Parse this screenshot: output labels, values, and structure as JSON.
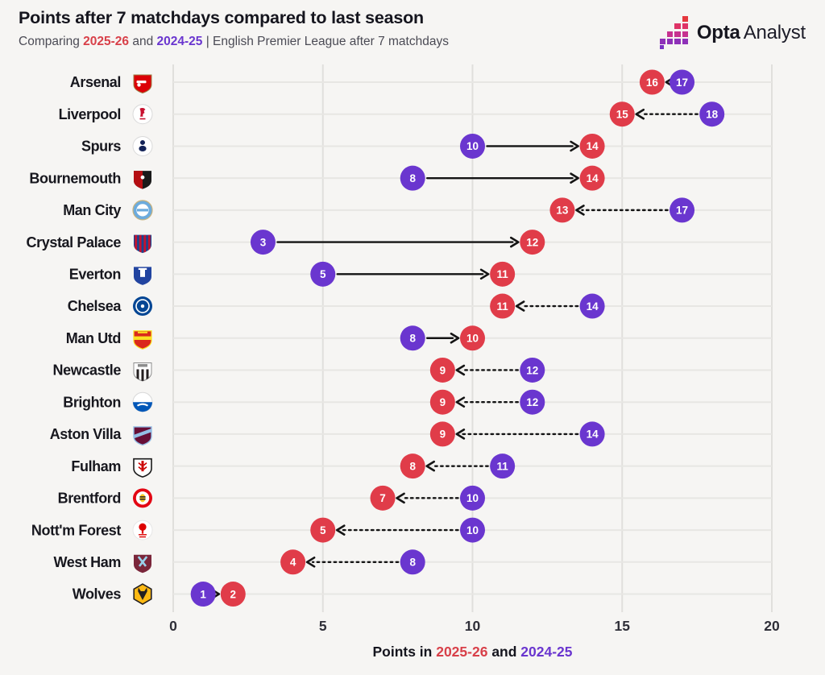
{
  "header": {
    "title": "Points after 7 matchdays compared to last season",
    "subtitle": {
      "prefix": "Comparing ",
      "season_new": "2025-26",
      "and": " and ",
      "season_old": "2024-25",
      "suffix": " | English Premier League after 7 matchdays"
    }
  },
  "logo": {
    "brand_bold": "Opta",
    "brand_light": "Analyst",
    "square_row_colors": [
      "#e5383d",
      "#de3366",
      "#c63190",
      "#8e31b8"
    ],
    "detached_square_color": "#7a32c4"
  },
  "x_axis_label": {
    "prefix": "Points in ",
    "season_new": "2025-26",
    "and": " and ",
    "season_old": "2024-25"
  },
  "colors": {
    "season_new_dot": "#e03c49",
    "season_old_dot": "#6a36cf",
    "arrow": "#141414",
    "background": "#f6f5f3",
    "gridline_h": "#e7e6e3",
    "gridline_v": "#e0dfdc",
    "team_label": "#17171e",
    "tick_label": "#2f2f38"
  },
  "chart_data": {
    "type": "dumbbell",
    "title": "Points after 7 matchdays compared to last season",
    "xlabel": "Points in 2025-26 and 2024-25",
    "xlim": [
      0,
      20
    ],
    "xticks": [
      0,
      5,
      10,
      15,
      20
    ],
    "grid": true,
    "series": [
      {
        "name": "2025-26",
        "color": "#e03c49",
        "role": "new"
      },
      {
        "name": "2024-25",
        "color": "#6a36cf",
        "role": "old"
      }
    ],
    "arrow_note": "arrow points from 2024-25 value to 2025-26 value; solid = improved, dashed = declined",
    "teams": [
      {
        "name": "Arsenal",
        "pts_2025_26": 16,
        "pts_2024_25": 17,
        "badge": {
          "motif": "arsenal",
          "colors": [
            "#db0007",
            "#ffffff",
            "#9c824a"
          ]
        }
      },
      {
        "name": "Liverpool",
        "pts_2025_26": 15,
        "pts_2024_25": 18,
        "badge": {
          "motif": "liverpool",
          "colors": [
            "#ffffff",
            "#c8102e",
            "#d9d9d9"
          ]
        }
      },
      {
        "name": "Spurs",
        "pts_2025_26": 14,
        "pts_2024_25": 10,
        "badge": {
          "motif": "spurs",
          "colors": [
            "#ffffff",
            "#132257",
            "#d9d9d9"
          ]
        }
      },
      {
        "name": "Bournemouth",
        "pts_2025_26": 14,
        "pts_2024_25": 8,
        "badge": {
          "motif": "bournemouth",
          "colors": [
            "#b50e12",
            "#1a1a1a",
            "#ffffff"
          ]
        }
      },
      {
        "name": "Man City",
        "pts_2025_26": 13,
        "pts_2024_25": 17,
        "badge": {
          "motif": "mancity",
          "colors": [
            "#6cabdd",
            "#ffffff",
            "#c9b37e"
          ]
        }
      },
      {
        "name": "Crystal Palace",
        "pts_2025_26": 12,
        "pts_2024_25": 3,
        "badge": {
          "motif": "palace",
          "colors": [
            "#1b458f",
            "#c4122e"
          ]
        }
      },
      {
        "name": "Everton",
        "pts_2025_26": 11,
        "pts_2024_25": 5,
        "badge": {
          "motif": "everton",
          "colors": [
            "#2244a0",
            "#ffffff"
          ]
        }
      },
      {
        "name": "Chelsea",
        "pts_2025_26": 11,
        "pts_2024_25": 14,
        "badge": {
          "motif": "chelsea",
          "colors": [
            "#034694",
            "#ffffff"
          ]
        }
      },
      {
        "name": "Man Utd",
        "pts_2025_26": 10,
        "pts_2024_25": 8,
        "badge": {
          "motif": "manutd",
          "colors": [
            "#da291c",
            "#fbe122"
          ]
        }
      },
      {
        "name": "Newcastle",
        "pts_2025_26": 9,
        "pts_2024_25": 12,
        "badge": {
          "motif": "newcastle",
          "colors": [
            "#241f20",
            "#ffffff",
            "#8d8d8d"
          ]
        }
      },
      {
        "name": "Brighton",
        "pts_2025_26": 9,
        "pts_2024_25": 12,
        "badge": {
          "motif": "brighton",
          "colors": [
            "#ffffff",
            "#0057b8",
            "#d9d9d9"
          ]
        }
      },
      {
        "name": "Aston Villa",
        "pts_2025_26": 9,
        "pts_2024_25": 14,
        "badge": {
          "motif": "villa",
          "colors": [
            "#670e36",
            "#94bee5"
          ]
        }
      },
      {
        "name": "Fulham",
        "pts_2025_26": 8,
        "pts_2024_25": 11,
        "badge": {
          "motif": "fulham",
          "colors": [
            "#ffffff",
            "#1a1a1a",
            "#cc0000"
          ]
        }
      },
      {
        "name": "Brentford",
        "pts_2025_26": 7,
        "pts_2024_25": 10,
        "badge": {
          "motif": "brentford",
          "colors": [
            "#e30613",
            "#ffffff",
            "#f9c623",
            "#231f20"
          ]
        }
      },
      {
        "name": "Nott'm Forest",
        "pts_2025_26": 5,
        "pts_2024_25": 10,
        "badge": {
          "motif": "forest",
          "colors": [
            "#ffffff",
            "#dd0000"
          ]
        }
      },
      {
        "name": "West Ham",
        "pts_2025_26": 4,
        "pts_2024_25": 8,
        "badge": {
          "motif": "westham",
          "colors": [
            "#7a263a",
            "#9ad1ea"
          ]
        }
      },
      {
        "name": "Wolves",
        "pts_2025_26": 2,
        "pts_2024_25": 1,
        "badge": {
          "motif": "wolves",
          "colors": [
            "#fdb913",
            "#231f20"
          ]
        }
      }
    ]
  }
}
